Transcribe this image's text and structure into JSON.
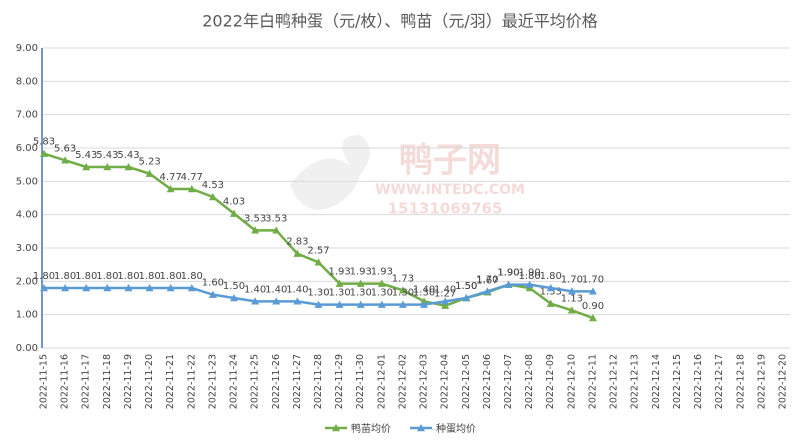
{
  "chart_data": {
    "type": "line",
    "title": "2022年白鸭种蛋（元/枚）、鸭苗（元/羽）最近平均价格",
    "watermark": [
      "鸭子网",
      "WWW.INTEDC.COM",
      "15131069765"
    ],
    "categories": [
      "2022-11-15",
      "2022-11-16",
      "2022-11-17",
      "2022-11-18",
      "2022-11-19",
      "2022-11-20",
      "2022-11-21",
      "2022-11-22",
      "2022-11-23",
      "2022-11-24",
      "2022-11-25",
      "2022-11-26",
      "2022-11-27",
      "2022-11-28",
      "2022-11-29",
      "2022-11-30",
      "2022-12-01",
      "2022-12-02",
      "2022-12-03",
      "2022-12-04",
      "2022-12-05",
      "2022-12-06",
      "2022-12-07",
      "2022-12-08",
      "2022-12-09",
      "2022-12-10",
      "2022-12-11",
      "2022-12-12",
      "2022-12-13",
      "2022-12-14",
      "2022-12-15",
      "2022-12-16",
      "2022-12-17",
      "2022-12-18",
      "2022-12-19",
      "2022-12-20"
    ],
    "series": [
      {
        "name": "鸭苗均价",
        "color": "#70ad47",
        "values": [
          5.83,
          5.63,
          5.43,
          5.43,
          5.43,
          5.23,
          4.77,
          4.77,
          4.53,
          4.03,
          3.53,
          3.53,
          2.83,
          2.57,
          1.93,
          1.93,
          1.93,
          1.73,
          1.4,
          1.27,
          1.5,
          1.67,
          1.9,
          1.8,
          1.33,
          1.13,
          0.9,
          null,
          null,
          null,
          null,
          null,
          null,
          null,
          null,
          null
        ],
        "value_labels": [
          "5.83",
          "5.63",
          "5.43",
          "5.43",
          "5.43",
          "5.23",
          "4.77",
          "4.77",
          "4.53",
          "4.03",
          "3.53",
          "3.53",
          "2.83",
          "2.57",
          "1.93",
          "1.93",
          "1.93",
          "1.73",
          "1.40",
          "1.27",
          "1.50",
          "1.67",
          "1.90",
          "1.80",
          "1.33",
          "1.13",
          "0.90",
          null,
          null,
          null,
          null,
          null,
          null,
          null,
          null,
          null
        ]
      },
      {
        "name": "种蛋均价",
        "color": "#5b9bd5",
        "values": [
          1.8,
          1.8,
          1.8,
          1.8,
          1.8,
          1.8,
          1.8,
          1.8,
          1.6,
          1.5,
          1.4,
          1.4,
          1.4,
          1.3,
          1.3,
          1.3,
          1.3,
          1.3,
          1.3,
          1.4,
          1.5,
          1.7,
          1.9,
          1.9,
          1.8,
          1.7,
          1.7,
          null,
          null,
          null,
          null,
          null,
          null,
          null,
          null,
          null
        ],
        "value_labels": [
          "1.80",
          "1.80",
          "1.80",
          "1.80",
          "1.80",
          "1.80",
          "1.80",
          "1.80",
          "1.60",
          "1.50",
          "1.40",
          "1.40",
          "1.40",
          "1.30",
          "1.30",
          "1.30",
          "1.30",
          "1.30",
          "1.30",
          "1.40",
          "1.50",
          "1.70",
          "1.90",
          "1.90",
          "1.80",
          "1.70",
          "1.70",
          null,
          null,
          null,
          null,
          null,
          null,
          null,
          null,
          null
        ]
      }
    ],
    "ylim": [
      0,
      9
    ],
    "yticks": [
      {
        "value": 0,
        "label": "0.00"
      },
      {
        "value": 1,
        "label": "1.00"
      },
      {
        "value": 2,
        "label": "2.00"
      },
      {
        "value": 3,
        "label": "3.00"
      },
      {
        "value": 4,
        "label": "4.00"
      },
      {
        "value": 5,
        "label": "5.00"
      },
      {
        "value": 6,
        "label": "6.00"
      },
      {
        "value": 7,
        "label": "7.00"
      },
      {
        "value": 8,
        "label": "8.00"
      },
      {
        "value": 9,
        "label": "9.00"
      }
    ],
    "grid": true,
    "legend": "bottom"
  }
}
